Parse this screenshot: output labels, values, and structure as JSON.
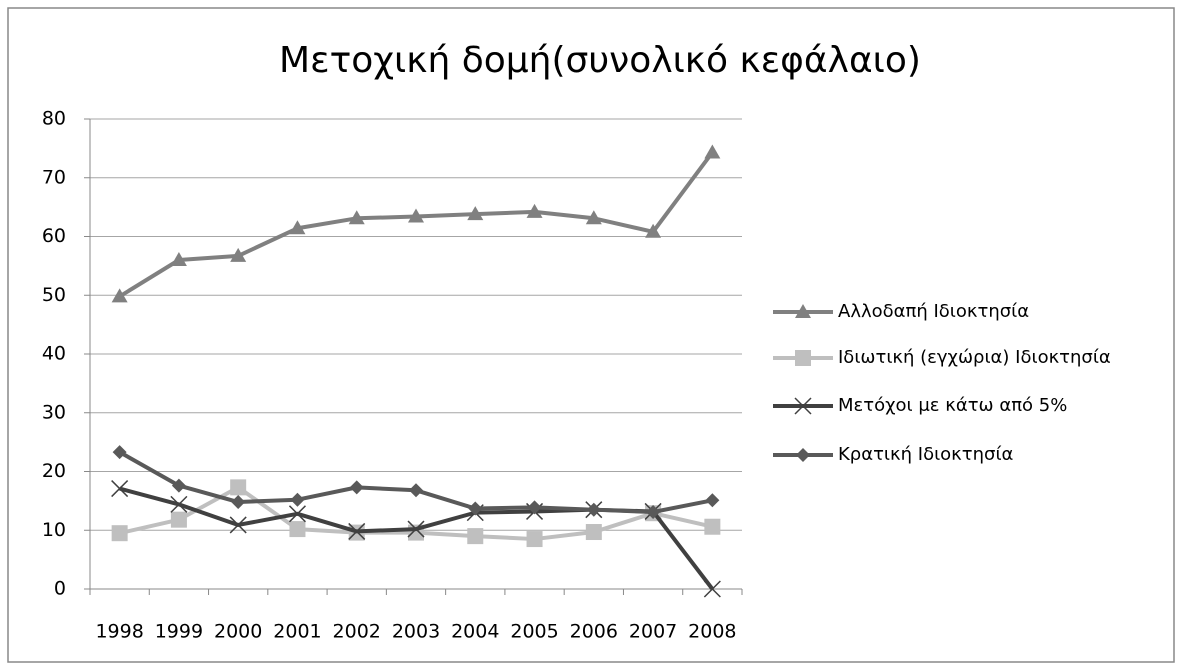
{
  "chart_data": {
    "type": "line",
    "title": "Μετοχική δομή(συνολικό κεφάλαιο)",
    "categories": [
      "1998",
      "1999",
      "2000",
      "2001",
      "2002",
      "2003",
      "2004",
      "2005",
      "2006",
      "2007",
      "2008"
    ],
    "series": [
      {
        "name": "Αλλοδαπή Ιδιοκτησία",
        "color": "#808080",
        "marker": "triangle",
        "values": [
          49.8,
          56,
          56.7,
          61.4,
          63.1,
          63.4,
          63.8,
          64.2,
          63.1,
          60.8,
          74.3
        ]
      },
      {
        "name": "Ιδιωτική (εγχώρια) Ιδιοκτησία",
        "color": "#bfbfbf",
        "marker": "square",
        "values": [
          9.5,
          11.8,
          17.3,
          10.2,
          9.6,
          9.6,
          9.0,
          8.5,
          9.7,
          12.9,
          10.6
        ]
      },
      {
        "name": "Μετόχοι με κάτω από 5%",
        "color": "#404040",
        "marker": "x",
        "values": [
          17.1,
          14.4,
          10.9,
          12.8,
          9.8,
          10.2,
          13.0,
          13.2,
          13.5,
          13.2,
          0
        ]
      },
      {
        "name": "Κρατική Ιδιοκτησία",
        "color": "#595959",
        "marker": "diamond",
        "values": [
          23.3,
          17.6,
          14.8,
          15.2,
          17.3,
          16.8,
          13.7,
          13.9,
          13.5,
          13.1,
          15.1
        ]
      }
    ],
    "ylim": [
      0,
      80
    ],
    "yticks": [
      0,
      10,
      20,
      30,
      40,
      50,
      60,
      70,
      80
    ],
    "grid": true,
    "legend": "right"
  }
}
